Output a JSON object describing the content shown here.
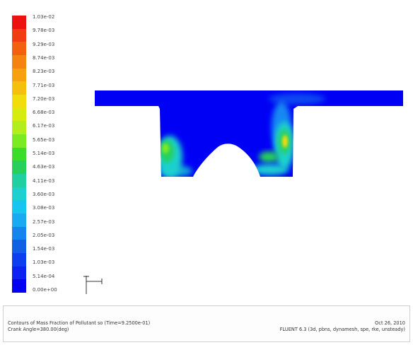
{
  "legend": {
    "labels": [
      "1.03e-02",
      "9.78e-03",
      "9.29e-03",
      "8.74e-03",
      "8.23e-03",
      "7.71e-03",
      "7.20e-03",
      "6.68e-03",
      "6.17e-03",
      "5.65e-03",
      "5.14e-03",
      "4.63e-03",
      "4.11e-03",
      "3.60e-03",
      "3.08e-03",
      "2.57e-03",
      "2.05e-03",
      "1.54e-03",
      "1.03e-03",
      "5.14e-04",
      "0.00e+00"
    ],
    "colors": [
      "#ee1111",
      "#f13b10",
      "#f3600f",
      "#f4830f",
      "#f6a20e",
      "#f5c00c",
      "#f0dd0b",
      "#d6ec10",
      "#b2ee1c",
      "#7cea22",
      "#3bdc2a",
      "#27d05a",
      "#21cfa0",
      "#1ed0cf",
      "#17c6ee",
      "#1aaaf2",
      "#1684ee",
      "#1060e6",
      "#0d3ef0",
      "#0c22f2",
      "#0000f5"
    ]
  },
  "plot": {
    "field_color": "#0000f5",
    "hot_colors": [
      "#1ed0cf",
      "#27d05a",
      "#7cea22",
      "#f0dd0b"
    ]
  },
  "footer": {
    "caption": "Contours of Mass Fraction of Pollutant so  (Time=9.2500e-01)",
    "view_info": "Crank Angle=380.00(deg)",
    "date": "Oct 26, 2010",
    "solver_info": "FLUENT 6.3 (3d, pbns, dynamesh, spe, rke, unsteady)"
  }
}
